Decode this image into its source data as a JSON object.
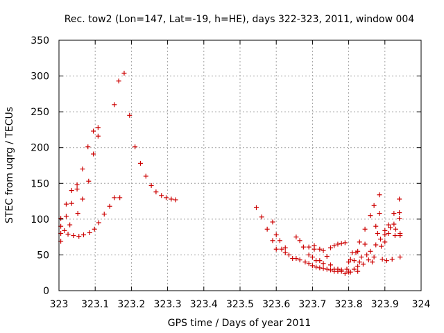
{
  "chart_data": {
    "type": "scatter",
    "title": "Rec. tow2 (Lon=147, Lat=-19, h=HE), days 322-323, 2011, window 004",
    "xlabel": "GPS time / Days of year 2011",
    "ylabel": "STEC from uqrg / TECUs",
    "xlim": [
      323,
      324
    ],
    "ylim": [
      0,
      350
    ],
    "grid": true,
    "marker": "+",
    "color": "#cc0000",
    "xticks": [
      "323",
      "323.1",
      "323.2",
      "323.3",
      "323.4",
      "323.5",
      "323.6",
      "323.7",
      "323.8",
      "323.9",
      "324"
    ],
    "yticks": [
      "0",
      "50",
      "100",
      "150",
      "200",
      "250",
      "300",
      "350"
    ],
    "series": [
      {
        "points": [
          [
            323.005,
            101
          ],
          [
            323.005,
            90
          ],
          [
            323.005,
            80
          ],
          [
            323.005,
            69
          ],
          [
            323.015,
            84
          ],
          [
            323.02,
            104
          ],
          [
            323.02,
            121
          ],
          [
            323.025,
            79
          ],
          [
            323.03,
            92
          ],
          [
            323.035,
            122
          ],
          [
            323.035,
            140
          ],
          [
            323.04,
            77
          ],
          [
            323.05,
            142
          ],
          [
            323.05,
            148
          ],
          [
            323.052,
            108
          ],
          [
            323.055,
            76
          ],
          [
            323.065,
            170
          ],
          [
            323.065,
            128
          ],
          [
            323.068,
            78
          ],
          [
            323.08,
            201
          ],
          [
            323.082,
            153
          ],
          [
            323.085,
            81
          ],
          [
            323.095,
            223
          ],
          [
            323.095,
            191
          ],
          [
            323.098,
            86
          ],
          [
            323.108,
            228
          ],
          [
            323.108,
            216
          ],
          [
            323.11,
            95
          ],
          [
            323.125,
            107
          ],
          [
            323.14,
            118
          ],
          [
            323.153,
            260
          ],
          [
            323.153,
            130
          ],
          [
            323.165,
            293
          ],
          [
            323.168,
            130
          ],
          [
            323.18,
            304
          ],
          [
            323.195,
            245
          ],
          [
            323.21,
            201
          ],
          [
            323.225,
            178
          ],
          [
            323.24,
            160
          ],
          [
            323.255,
            147
          ],
          [
            323.268,
            138
          ],
          [
            323.283,
            133
          ],
          [
            323.296,
            130
          ],
          [
            323.31,
            128
          ],
          [
            323.322,
            127
          ],
          [
            323.545,
            116
          ],
          [
            323.56,
            103
          ],
          [
            323.575,
            86
          ],
          [
            323.59,
            96
          ],
          [
            323.59,
            70
          ],
          [
            323.6,
            78
          ],
          [
            323.6,
            58
          ],
          [
            323.61,
            70
          ],
          [
            323.615,
            58
          ],
          [
            323.625,
            60
          ],
          [
            323.625,
            53
          ],
          [
            323.635,
            50
          ],
          [
            323.645,
            45
          ],
          [
            323.655,
            75
          ],
          [
            323.655,
            45
          ],
          [
            323.665,
            70
          ],
          [
            323.665,
            43
          ],
          [
            323.675,
            61
          ],
          [
            323.68,
            40
          ],
          [
            323.69,
            61
          ],
          [
            323.69,
            50
          ],
          [
            323.69,
            38
          ],
          [
            323.7,
            47
          ],
          [
            323.7,
            35
          ],
          [
            323.705,
            63
          ],
          [
            323.705,
            58
          ],
          [
            323.71,
            42
          ],
          [
            323.71,
            33
          ],
          [
            323.72,
            58
          ],
          [
            323.72,
            42
          ],
          [
            323.72,
            32
          ],
          [
            323.73,
            56
          ],
          [
            323.73,
            38
          ],
          [
            323.73,
            31
          ],
          [
            323.74,
            48
          ],
          [
            323.74,
            30
          ],
          [
            323.75,
            60
          ],
          [
            323.75,
            36
          ],
          [
            323.75,
            29
          ],
          [
            323.76,
            63
          ],
          [
            323.76,
            30
          ],
          [
            323.76,
            27
          ],
          [
            323.77,
            65
          ],
          [
            323.77,
            30
          ],
          [
            323.77,
            27
          ],
          [
            323.78,
            66
          ],
          [
            323.78,
            29
          ],
          [
            323.78,
            27
          ],
          [
            323.79,
            67
          ],
          [
            323.79,
            24
          ],
          [
            323.795,
            30
          ],
          [
            323.8,
            40
          ],
          [
            323.8,
            26
          ],
          [
            323.805,
            44
          ],
          [
            323.805,
            26
          ],
          [
            323.81,
            53
          ],
          [
            323.815,
            42
          ],
          [
            323.815,
            30
          ],
          [
            323.82,
            53
          ],
          [
            323.825,
            55
          ],
          [
            323.825,
            34
          ],
          [
            323.825,
            27
          ],
          [
            323.83,
            68
          ],
          [
            323.83,
            40
          ],
          [
            323.835,
            47
          ],
          [
            323.84,
            37
          ],
          [
            323.845,
            65
          ],
          [
            323.845,
            86
          ],
          [
            323.85,
            50
          ],
          [
            323.855,
            43
          ],
          [
            323.86,
            105
          ],
          [
            323.86,
            55
          ],
          [
            323.865,
            40
          ],
          [
            323.87,
            119
          ],
          [
            323.87,
            47
          ],
          [
            323.875,
            64
          ],
          [
            323.875,
            90
          ],
          [
            323.88,
            80
          ],
          [
            323.885,
            134
          ],
          [
            323.885,
            108
          ],
          [
            323.888,
            72
          ],
          [
            323.89,
            62
          ],
          [
            323.893,
            44
          ],
          [
            323.9,
            84
          ],
          [
            323.9,
            78
          ],
          [
            323.9,
            68
          ],
          [
            323.905,
            42
          ],
          [
            323.91,
            92
          ],
          [
            323.91,
            80
          ],
          [
            323.915,
            88
          ],
          [
            323.92,
            44
          ],
          [
            323.925,
            93
          ],
          [
            323.925,
            108
          ],
          [
            323.928,
            77
          ],
          [
            323.93,
            86
          ],
          [
            323.94,
            128
          ],
          [
            323.94,
            109
          ],
          [
            323.94,
            101
          ],
          [
            323.942,
            80
          ],
          [
            323.942,
            77
          ],
          [
            323.942,
            47
          ]
        ]
      }
    ]
  }
}
